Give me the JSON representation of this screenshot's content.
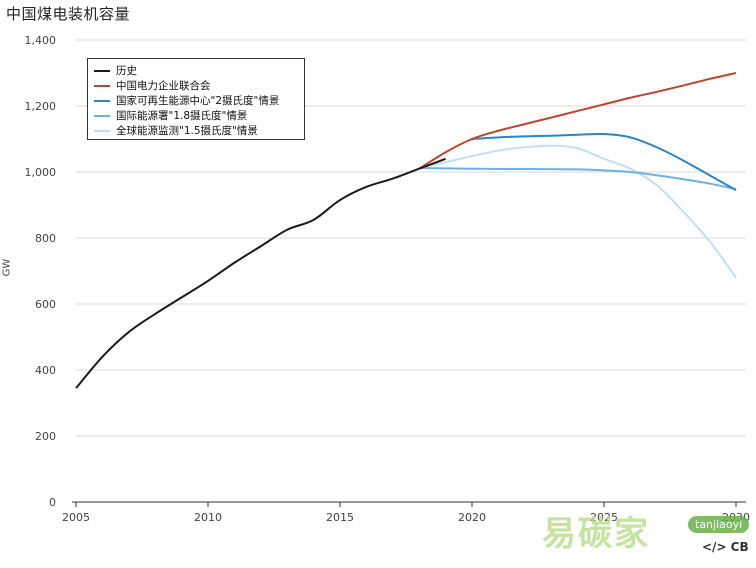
{
  "title": "中国煤电装机容量",
  "colors": {
    "history": "#1a1a1a",
    "cec": "#c0432c",
    "nre2": "#2a86c8",
    "nea18": "#6fb1e0",
    "gem15": "#bfe0f4",
    "grid": "#d9d9d9",
    "axis": "#333333"
  },
  "watermark": {
    "text": "易碳家",
    "badge": "tanjiaoyi",
    "code": "</> CB"
  },
  "chart_data": {
    "type": "line",
    "title": "中国煤电装机容量",
    "xlabel": "",
    "ylabel": "GW",
    "xlim": [
      2005,
      2030
    ],
    "ylim": [
      0,
      1400
    ],
    "x_ticks": [
      2005,
      2010,
      2015,
      2020,
      2025,
      2030
    ],
    "x_tick_labels": [
      "2005",
      "2010",
      "2015",
      "2020",
      "2025",
      "2030"
    ],
    "y_ticks": [
      0,
      200,
      400,
      600,
      800,
      1000,
      1200,
      1400
    ],
    "y_tick_labels": [
      "0",
      "200",
      "400",
      "600",
      "800",
      "1,000",
      "1,200",
      "1,400"
    ],
    "grid": true,
    "legend_position": "top-left",
    "series": [
      {
        "name": "历史",
        "color_key": "history",
        "x": [
          2005,
          2006,
          2007,
          2008,
          2009,
          2010,
          2011,
          2012,
          2013,
          2014,
          2015,
          2016,
          2017,
          2018,
          2019
        ],
        "y": [
          345,
          440,
          515,
          570,
          620,
          670,
          725,
          775,
          825,
          855,
          915,
          955,
          980,
          1010,
          1040
        ]
      },
      {
        "name": "中国电力企业联合会",
        "color_key": "cec",
        "x": [
          2018,
          2019,
          2020,
          2021,
          2022,
          2023,
          2024,
          2025,
          2026,
          2027,
          2028,
          2029,
          2030
        ],
        "y": [
          1010,
          1060,
          1100,
          1125,
          1145,
          1165,
          1185,
          1205,
          1225,
          1243,
          1262,
          1282,
          1300
        ]
      },
      {
        "name": "国家可再生能源中心\"2摄氏度\"情景",
        "color_key": "nre2",
        "x": [
          2020,
          2021,
          2022,
          2023,
          2024,
          2025,
          2026,
          2027,
          2028,
          2029,
          2030
        ],
        "y": [
          1100,
          1105,
          1108,
          1110,
          1113,
          1115,
          1105,
          1075,
          1035,
          990,
          945
        ]
      },
      {
        "name": "国际能源署\"1.8摄氏度\"情景",
        "color_key": "nea18",
        "x": [
          2018,
          2020,
          2022,
          2024,
          2025,
          2026,
          2027,
          2028,
          2029,
          2030
        ],
        "y": [
          1012,
          1010,
          1009,
          1008,
          1005,
          1000,
          990,
          978,
          965,
          948
        ]
      },
      {
        "name": "全球能源监测\"1.5摄氏度\"情景",
        "color_key": "gem15",
        "x": [
          2018,
          2019,
          2020,
          2021,
          2022,
          2023,
          2024,
          2025,
          2026,
          2027,
          2028,
          2029,
          2030
        ],
        "y": [
          1012,
          1030,
          1048,
          1065,
          1075,
          1080,
          1072,
          1040,
          1010,
          960,
          880,
          790,
          680
        ]
      }
    ]
  }
}
